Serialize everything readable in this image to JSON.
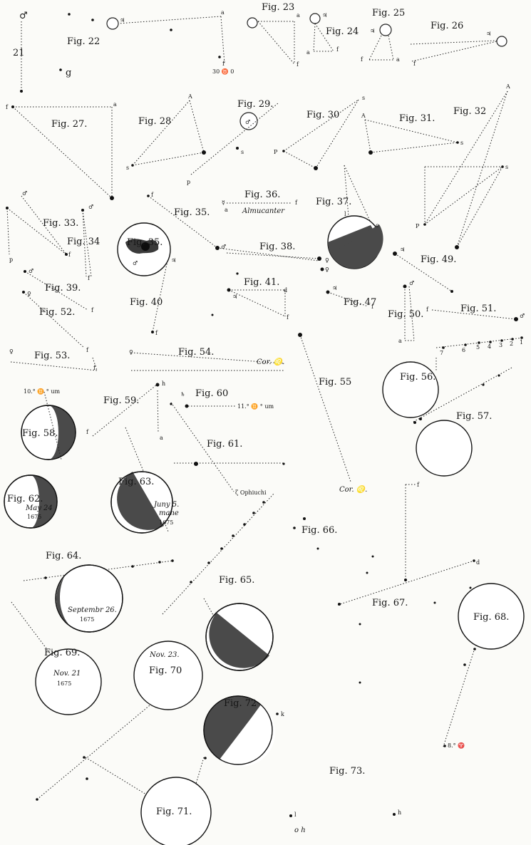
{
  "figures": {
    "f21": "21",
    "f22": "Fig. 22",
    "f23": "Fig. 23",
    "f24": "Fig. 24",
    "f25": "Fig. 25",
    "f26": "Fig. 26",
    "f27": "Fig. 27.",
    "f28": "Fig. 28",
    "f29": "Fig. 29.",
    "f30": "Fig. 30",
    "f31": "Fig. 31.",
    "f32": "Fig. 32",
    "f33": "Fig. 33.",
    "f34": "Fig. 34",
    "f35a": "Fig. 35.",
    "f35b": "Fig. 35.",
    "f36": "Fig. 36.",
    "f37": "Fig. 37.",
    "f38": "Fig. 38.",
    "f39": "Fig. 39.",
    "f40": "Fig. 40",
    "f41": "Fig. 41.",
    "f47": "Fig. 47",
    "f49": "Fig. 49.",
    "f50": "Fig. 50.",
    "f51": "Fig. 51.",
    "f52": "Fig. 52.",
    "f53": "Fig. 53.",
    "f54": "Fig. 54.",
    "f55": "Fig. 55",
    "f56": "Fig. 56.",
    "f57": "Fig. 57.",
    "f58": "Fig. 58.",
    "f59": "Fig. 59.",
    "f60": "Fig. 60",
    "f61": "Fig. 61.",
    "f62": "Fig. 62.",
    "f63": "Fig. 63.",
    "f64": "Fig. 64.",
    "f65": "Fig. 65.",
    "f66": "Fig. 66.",
    "f67": "Fig. 67.",
    "f68": "Fig. 68.",
    "f69": "Fig. 69.",
    "f70": "Fig. 70",
    "f71": "Fig. 71.",
    "f72": "Fig. 72",
    "f73": "Fig. 73."
  },
  "letters": {
    "a": "a",
    "f": "f",
    "s": "s",
    "p": "p",
    "A": "A",
    "P": "P",
    "g": "g",
    "c": "c",
    "d": "d",
    "k": "k",
    "l": "l",
    "h": "h"
  },
  "symbols": {
    "jupiter": "♃",
    "mars": "♂",
    "venus": "♀",
    "saturn": "♄",
    "mercury": "☿",
    "aries": "♈"
  },
  "annotations": {
    "almucanter": "Almucanter",
    "cor_leonis_54": "Cor. ♌.",
    "cor_leonis_55": "Cor. ♌.",
    "ophiuchi": "ζ Ophiuchi",
    "gemini_58": "10.° ♊ ° um",
    "gemini_60": "11.° ♊ ° um",
    "pos_22": "30 ♉ 0",
    "pos_73": "8.° ♈",
    "june_title": "Juny 5.",
    "june_mane": "mane",
    "june_year": "1675",
    "may_title": "May 24",
    "may_year": "1675",
    "sept_title": "Septembr 26.",
    "sept_year": "1675",
    "nov21_title": "Nov. 21",
    "nov21_year": "1675",
    "nov23_title": "Nov. 23.",
    "oh": "o h",
    "star_nums": [
      "7",
      "6",
      "5",
      "4",
      "3",
      "2",
      "1"
    ]
  }
}
